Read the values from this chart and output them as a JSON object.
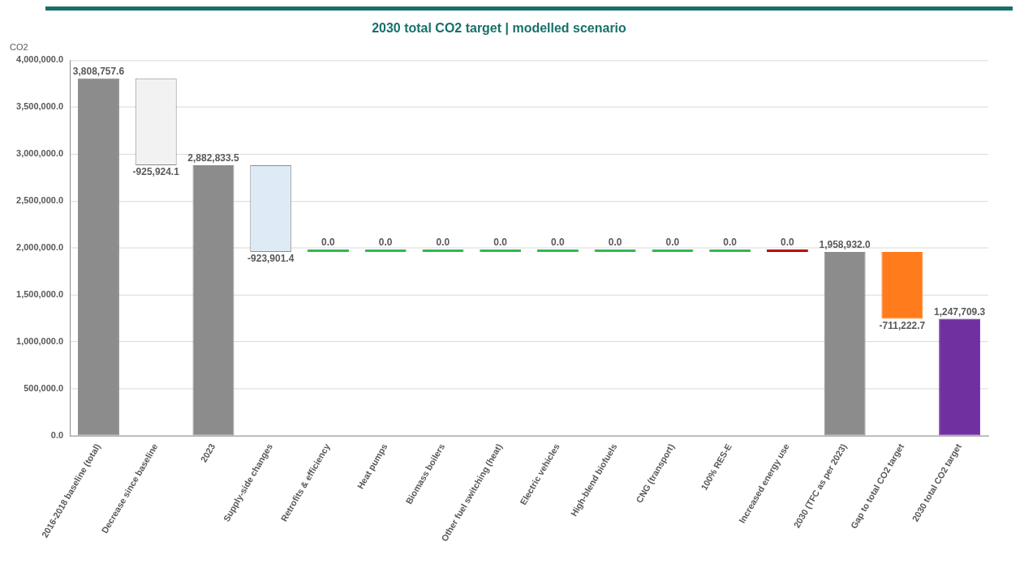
{
  "chart_data": {
    "type": "bar",
    "title": "2030 total CO2 target | modelled scenario",
    "ylabel": "CO2",
    "categories": [
      "2016-2018 baseline (total)",
      "Decrease since baseline",
      "2023",
      "Supply-side changes",
      "Retrofits & efficiency",
      "Heat pumps",
      "Biomass boilers",
      "Other fuel switching (heat)",
      "Electric vehicles",
      "High-blend biofuels",
      "CNG (transport)",
      "100% RES-E",
      "Increased energy use",
      "2030 (TFC as per 2023)",
      "Gap to total CO2 target",
      "2030 total CO2 target"
    ],
    "values": [
      3808757.6,
      -925924.1,
      2882833.5,
      -923901.4,
      0.0,
      0.0,
      0.0,
      0.0,
      0.0,
      0.0,
      0.0,
      0.0,
      0.0,
      1958932.0,
      -711222.7,
      1247709.3
    ],
    "base": [
      0,
      3808757.6,
      0,
      2882833.5,
      1958932.0,
      1958932.0,
      1958932.0,
      1958932.0,
      1958932.0,
      1958932.0,
      1958932.0,
      1958932.0,
      1958932.0,
      0,
      1958932.0,
      0
    ],
    "colors": [
      "#8c8c8c",
      "#f2f2f2",
      "#8c8c8c",
      "#deebf7",
      "#2eb84e",
      "#2eb84e",
      "#2eb84e",
      "#2eb84e",
      "#2eb84e",
      "#2eb84e",
      "#2eb84e",
      "#2eb84e",
      "#c00000",
      "#8c8c8c",
      "#ff7b1c",
      "#7030a0"
    ],
    "ylim": [
      0,
      4000000
    ],
    "yticks": [
      {
        "value": 0,
        "label": "0.0"
      },
      {
        "value": 500000,
        "label": "500,000.0"
      },
      {
        "value": 1000000,
        "label": "1,000,000.0"
      },
      {
        "value": 1500000,
        "label": "1,500,000.0"
      },
      {
        "value": 2000000,
        "label": "2,000,000.0"
      },
      {
        "value": 2500000,
        "label": "2,500,000.0"
      },
      {
        "value": 3000000,
        "label": "3,000,000.0"
      },
      {
        "value": 3500000,
        "label": "3,500,000.0"
      },
      {
        "value": 4000000,
        "label": "4,000,000.0"
      }
    ],
    "value_labels": [
      "3,808,757.6",
      "-925,924.1",
      "2,882,833.5",
      "-923,901.4",
      "0.0",
      "0.0",
      "0.0",
      "0.0",
      "0.0",
      "0.0",
      "0.0",
      "0.0",
      "0.0",
      "1,958,932.0",
      "-711,222.7",
      "1,247,709.3"
    ],
    "grid": "y"
  }
}
